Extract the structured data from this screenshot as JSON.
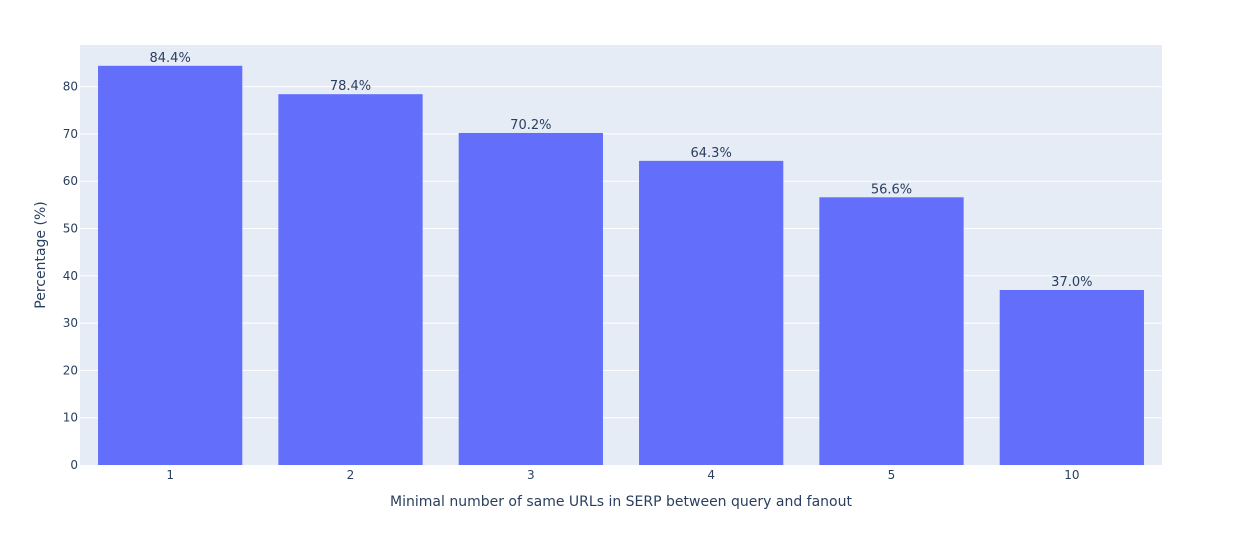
{
  "chart_data": {
    "type": "bar",
    "categories": [
      "1",
      "2",
      "3",
      "4",
      "5",
      "10"
    ],
    "values": [
      84.4,
      78.4,
      70.2,
      64.3,
      56.6,
      37.0
    ],
    "bar_labels": [
      "84.4%",
      "78.4%",
      "70.2%",
      "64.3%",
      "56.6%",
      "37.0%"
    ],
    "xlabel": "Minimal number of same URLs in SERP between query and fanout",
    "ylabel": "Percentage (%)",
    "ylim": [
      0,
      88.8
    ],
    "yticks": [
      0,
      10,
      20,
      30,
      40,
      50,
      60,
      70,
      80
    ],
    "grid": true,
    "colors": {
      "bar": "#636efa",
      "plot_background": "#e5ecf6",
      "gridline": "#ffffff",
      "text": "#2a3f5f"
    }
  }
}
